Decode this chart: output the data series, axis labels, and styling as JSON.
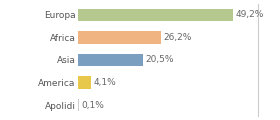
{
  "categories": [
    "Europa",
    "Africa",
    "Asia",
    "America",
    "Apolidi"
  ],
  "values": [
    49.2,
    26.2,
    20.5,
    4.1,
    0.1
  ],
  "labels": [
    "49,2%",
    "26,2%",
    "20,5%",
    "4,1%",
    "0,1%"
  ],
  "bar_colors": [
    "#b5c98e",
    "#f0b482",
    "#7a9ec0",
    "#e8c84a",
    "#cccccc"
  ],
  "background_color": "#ffffff",
  "xlim": [
    0,
    57
  ],
  "label_fontsize": 6.5,
  "tick_fontsize": 6.5
}
